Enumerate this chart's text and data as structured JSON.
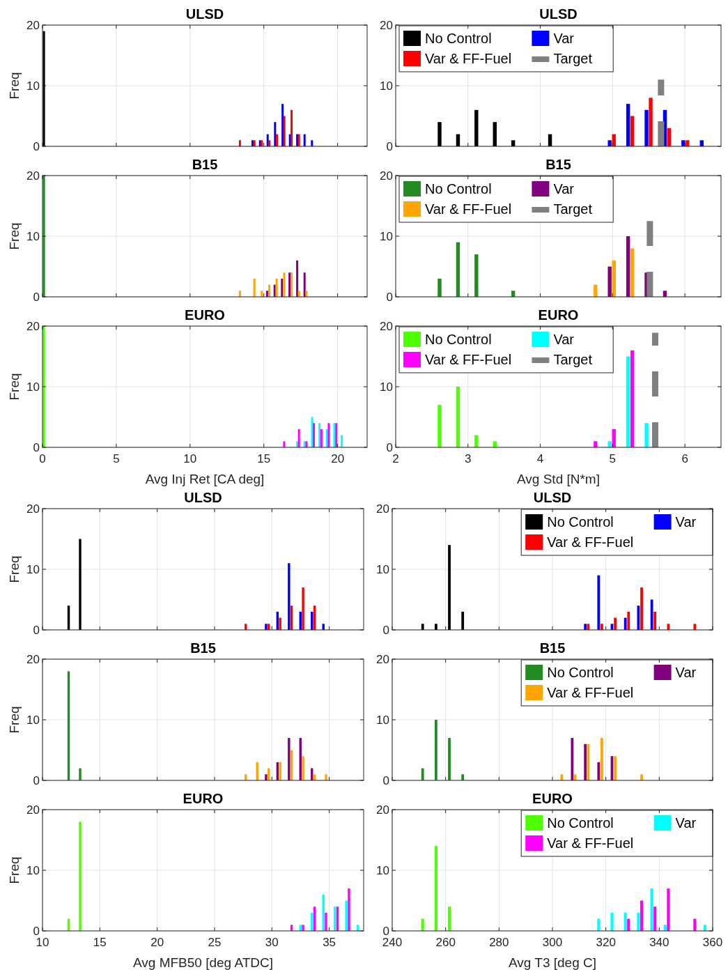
{
  "chart_data": [
    {
      "type": "bar",
      "title": "ULSD",
      "ylabel": "Freq",
      "xlim": [
        0,
        22
      ],
      "xticks": [
        0,
        5,
        10,
        15,
        20
      ],
      "ylim": [
        0,
        20
      ],
      "yticks": [
        0,
        10,
        20
      ],
      "grid": true,
      "tick_labels": "y",
      "series": [
        {
          "color": "#000000",
          "x": [
            0.1
          ],
          "values": [
            19
          ]
        },
        {
          "color": "#0000ff",
          "x": [
            14.23,
            14.74,
            15.26,
            15.76,
            16.27,
            16.77,
            17.26,
            17.76,
            18.26
          ],
          "values": [
            1,
            1,
            2,
            4,
            7,
            2,
            2,
            2,
            1
          ]
        },
        {
          "color": "#ff0000",
          "x": [
            13.38,
            14.36,
            14.86,
            15.38,
            15.89,
            16.39,
            16.88,
            17.38
          ],
          "values": [
            1,
            1,
            1,
            1,
            2,
            5,
            6,
            2
          ]
        }
      ]
    },
    {
      "type": "bar",
      "title": "ULSD",
      "xlim": [
        2,
        6.5
      ],
      "xticks": [
        2,
        3,
        4,
        5,
        6
      ],
      "ylim": [
        0,
        20
      ],
      "yticks": [
        0,
        10,
        20
      ],
      "grid": true,
      "tick_labels": "y",
      "legend": "top left",
      "series": [
        {
          "name": "No Control",
          "color": "#000000",
          "x": [
            2.607,
            2.862,
            3.116,
            3.371,
            3.625,
            4.135
          ],
          "values": [
            4,
            2,
            6,
            4,
            1,
            2
          ]
        },
        {
          "name": "Var",
          "color": "#0000ff",
          "x": [
            4.96,
            5.215,
            5.469,
            5.724,
            5.978,
            6.233
          ],
          "values": [
            1,
            7,
            6,
            6,
            1,
            1
          ]
        },
        {
          "name": "Var & FF-Fuel",
          "color": "#ff0000",
          "x": [
            5.018,
            5.273,
            5.527,
            5.782,
            6.036
          ],
          "values": [
            2,
            5,
            8,
            3,
            1
          ]
        },
        {
          "name": "Target",
          "type": "line",
          "line_style": "dashed",
          "color": "#808080",
          "x": [
            5.67,
            5.67
          ],
          "values": [
            0,
            11
          ]
        }
      ]
    },
    {
      "type": "bar",
      "title": "B15",
      "ylabel": "Freq",
      "xlim": [
        0,
        22
      ],
      "xticks": [
        0,
        5,
        10,
        15,
        20
      ],
      "ylim": [
        0,
        20
      ],
      "yticks": [
        0,
        10,
        20
      ],
      "grid": true,
      "tick_labels": "y",
      "series": [
        {
          "color": "#228b22",
          "x": [
            0.1
          ],
          "values": [
            20
          ]
        },
        {
          "color": "#800080",
          "x": [
            15.22,
            15.73,
            16.23,
            16.74,
            17.26,
            17.76
          ],
          "values": [
            1,
            2,
            3,
            4,
            6,
            4
          ]
        },
        {
          "color": "#ffa500",
          "x": [
            13.38,
            14.36,
            14.86,
            15.37,
            15.87,
            16.38,
            16.88,
            17.38,
            17.89
          ],
          "values": [
            1,
            3,
            1,
            2,
            3,
            4,
            4,
            1,
            1
          ]
        }
      ]
    },
    {
      "type": "bar",
      "title": "B15",
      "xlim": [
        2,
        6.5
      ],
      "xticks": [
        2,
        3,
        4,
        5,
        6
      ],
      "ylim": [
        0,
        20
      ],
      "yticks": [
        0,
        10,
        20
      ],
      "grid": true,
      "tick_labels": "y",
      "legend": "top left",
      "series": [
        {
          "name": "No Control",
          "color": "#228b22",
          "x": [
            2.607,
            2.862,
            3.116,
            3.625
          ],
          "values": [
            3,
            9,
            7,
            1
          ]
        },
        {
          "name": "Var",
          "color": "#800080",
          "x": [
            4.96,
            5.215,
            5.469,
            5.724
          ],
          "values": [
            5,
            10,
            4,
            1
          ]
        },
        {
          "name": "Var & FF-Fuel",
          "color": "#ffa500",
          "x": [
            4.764,
            5.018,
            5.273
          ],
          "values": [
            2,
            6,
            8
          ]
        },
        {
          "name": "Target",
          "type": "line",
          "line_style": "dashed",
          "color": "#808080",
          "x": [
            5.516,
            5.516
          ],
          "values": [
            0,
            12.5
          ]
        }
      ]
    },
    {
      "type": "bar",
      "title": "EURO",
      "ylabel": "Freq",
      "xlabel": "Avg Inj Ret [CA deg]",
      "xlim": [
        0,
        22
      ],
      "xticks": [
        0,
        5,
        10,
        15,
        20
      ],
      "ylim": [
        0,
        20
      ],
      "yticks": [
        0,
        10,
        20
      ],
      "grid": true,
      "series": [
        {
          "color": "#4dff00",
          "x": [
            0.1
          ],
          "values": [
            20
          ]
        },
        {
          "color": "#00ffff",
          "x": [
            17.26,
            17.76,
            18.27,
            18.77,
            19.28,
            19.78,
            20.28
          ],
          "values": [
            1,
            1,
            5,
            4,
            3,
            4,
            2
          ]
        },
        {
          "color": "#ff00ff",
          "x": [
            16.38,
            17.38,
            17.89,
            18.39,
            18.9,
            19.4,
            19.91
          ],
          "values": [
            1,
            3,
            1,
            4,
            3,
            4,
            4
          ]
        }
      ]
    },
    {
      "type": "bar",
      "title": "EURO",
      "xlabel": "Avg Std [N*m]",
      "xlim": [
        2,
        6.5
      ],
      "xticks": [
        2,
        3,
        4,
        5,
        6
      ],
      "ylim": [
        0,
        20
      ],
      "yticks": [
        0,
        10,
        20
      ],
      "grid": true,
      "legend": "top left",
      "series": [
        {
          "name": "No Control",
          "color": "#4dff00",
          "x": [
            2.607,
            2.862,
            3.116,
            3.371
          ],
          "values": [
            7,
            10,
            2,
            1
          ]
        },
        {
          "name": "Var",
          "color": "#00ffff",
          "x": [
            4.96,
            5.215,
            5.469
          ],
          "values": [
            1,
            15,
            4
          ]
        },
        {
          "name": "Var & FF-Fuel",
          "color": "#ff00ff",
          "x": [
            4.764,
            5.018,
            5.273
          ],
          "values": [
            1,
            3,
            16
          ]
        },
        {
          "name": "Target",
          "type": "line",
          "line_style": "dashed",
          "color": "#808080",
          "x": [
            5.589,
            5.589
          ],
          "values": [
            0,
            18.9
          ]
        }
      ]
    },
    {
      "type": "bar",
      "title": "ULSD",
      "ylabel": "Freq",
      "xlim": [
        10,
        38
      ],
      "xticks": [
        10,
        15,
        20,
        25,
        30,
        35
      ],
      "ylim": [
        0,
        20
      ],
      "yticks": [
        0,
        10,
        20
      ],
      "grid": true,
      "tick_labels": "y",
      "series": [
        {
          "color": "#000000",
          "x": [
            12.28,
            13.28
          ],
          "values": [
            4,
            15
          ]
        },
        {
          "color": "#0000ff",
          "x": [
            29.49,
            30.49,
            31.49,
            32.49,
            33.49,
            34.49
          ],
          "values": [
            1,
            3,
            11,
            3,
            3,
            1
          ]
        },
        {
          "color": "#ff0000",
          "x": [
            27.72,
            29.72,
            30.72,
            31.72,
            32.72,
            33.72
          ],
          "values": [
            1,
            1,
            2,
            4,
            7,
            4
          ]
        }
      ]
    },
    {
      "type": "bar",
      "title": "ULSD",
      "xlim": [
        240,
        360
      ],
      "xticks": [
        240,
        260,
        280,
        300,
        320,
        340,
        360
      ],
      "ylim": [
        0,
        20
      ],
      "yticks": [
        0,
        10,
        20
      ],
      "grid": true,
      "tick_labels": "y",
      "legend": "top right",
      "series": [
        {
          "name": "No Control",
          "color": "#000000",
          "x": [
            251.4,
            256.4,
            261.4,
            266.4
          ],
          "values": [
            1,
            1,
            14,
            3
          ]
        },
        {
          "name": "Var",
          "color": "#0000ff",
          "x": [
            312.3,
            317.3,
            322.3,
            327.3,
            332.2,
            337.2
          ],
          "values": [
            1,
            9,
            1,
            2,
            4,
            5
          ]
        },
        {
          "name": "Var & FF-Fuel",
          "color": "#ff0000",
          "x": [
            313.4,
            318.5,
            323.5,
            328.5,
            333.4,
            338.4,
            343.4,
            353.3
          ],
          "values": [
            1,
            1,
            2,
            3,
            7,
            3,
            1,
            1
          ]
        }
      ]
    },
    {
      "type": "bar",
      "title": "B15",
      "ylabel": "Freq",
      "xlim": [
        10,
        38
      ],
      "xticks": [
        10,
        15,
        20,
        25,
        30,
        35
      ],
      "ylim": [
        0,
        20
      ],
      "yticks": [
        0,
        10,
        20
      ],
      "grid": true,
      "tick_labels": "y",
      "series": [
        {
          "color": "#228b22",
          "x": [
            12.28,
            13.28
          ],
          "values": [
            18,
            2
          ]
        },
        {
          "color": "#800080",
          "x": [
            29.49,
            30.49,
            31.49,
            32.49,
            33.49
          ],
          "values": [
            1,
            3,
            7,
            7,
            2
          ]
        },
        {
          "color": "#ffa500",
          "x": [
            27.72,
            28.72,
            29.72,
            30.72,
            31.72,
            32.72,
            33.72,
            34.72
          ],
          "values": [
            1,
            3,
            2,
            3,
            5,
            4,
            1,
            1
          ]
        }
      ]
    },
    {
      "type": "bar",
      "title": "B15",
      "xlim": [
        240,
        360
      ],
      "xticks": [
        240,
        260,
        280,
        300,
        320,
        340,
        360
      ],
      "ylim": [
        0,
        20
      ],
      "yticks": [
        0,
        10,
        20
      ],
      "grid": true,
      "tick_labels": "y",
      "legend": "top right",
      "series": [
        {
          "name": "No Control",
          "color": "#228b22",
          "x": [
            251.4,
            256.4,
            261.4,
            266.4
          ],
          "values": [
            2,
            10,
            7,
            1
          ]
        },
        {
          "name": "Var",
          "color": "#800080",
          "x": [
            307.4,
            312.3,
            317.3,
            322.3
          ],
          "values": [
            7,
            6,
            3,
            4
          ]
        },
        {
          "name": "Var & FF-Fuel",
          "color": "#ffa500",
          "x": [
            303.5,
            308.5,
            313.4,
            318.5,
            323.5,
            333.4
          ],
          "values": [
            1,
            1,
            6,
            7,
            4,
            1
          ]
        }
      ]
    },
    {
      "type": "bar",
      "title": "EURO",
      "ylabel": "Freq",
      "xlabel": "Avg MFB50 [deg ATDC]",
      "xlim": [
        10,
        38
      ],
      "xticks": [
        10,
        15,
        20,
        25,
        30,
        35
      ],
      "ylim": [
        0,
        20
      ],
      "yticks": [
        0,
        10,
        20
      ],
      "grid": true,
      "series": [
        {
          "color": "#4dff00",
          "x": [
            12.28,
            13.28
          ],
          "values": [
            2,
            18
          ]
        },
        {
          "color": "#00ffff",
          "x": [
            32.49,
            33.49,
            34.49,
            35.49,
            36.49,
            37.49
          ],
          "values": [
            1,
            3,
            6,
            4,
            5,
            1
          ]
        },
        {
          "color": "#ff00ff",
          "x": [
            31.72,
            32.72,
            33.72,
            34.72,
            35.72,
            36.72
          ],
          "values": [
            1,
            1,
            4,
            3,
            4,
            7
          ]
        }
      ]
    },
    {
      "type": "bar",
      "title": "EURO",
      "xlabel": "Avg T3 [deg C]",
      "xlim": [
        240,
        360
      ],
      "xticks": [
        240,
        260,
        280,
        300,
        320,
        340,
        360
      ],
      "ylim": [
        0,
        20
      ],
      "yticks": [
        0,
        10,
        20
      ],
      "grid": true,
      "legend": "top right",
      "series": [
        {
          "name": "No Control",
          "color": "#4dff00",
          "x": [
            251.4,
            256.4,
            261.4
          ],
          "values": [
            2,
            14,
            4
          ]
        },
        {
          "name": "Var",
          "color": "#00ffff",
          "x": [
            317.3,
            322.3,
            327.3,
            332.2,
            337.2,
            342.2,
            357.1
          ],
          "values": [
            2,
            3,
            3,
            3,
            7,
            1,
            1
          ]
        },
        {
          "name": "Var & FF-Fuel",
          "color": "#ff00ff",
          "x": [
            328.5,
            333.4,
            338.4,
            343.4,
            353.3
          ],
          "values": [
            2,
            5,
            4,
            7,
            2
          ]
        }
      ]
    }
  ]
}
